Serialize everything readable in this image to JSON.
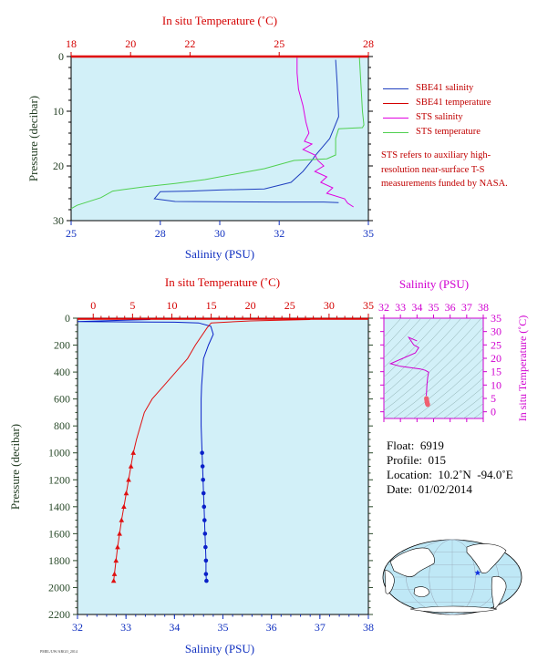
{
  "chart_data": [
    {
      "type": "line",
      "id": "top",
      "xlabel_bottom": "Salinity (PSU)",
      "xlabel_top": "In situ Temperature (˚C)",
      "ylabel": "Pressure (decibar)",
      "x_bottom_range": [
        25,
        35
      ],
      "x_bottom_ticks": [
        "25",
        "28",
        "30",
        "32",
        "35"
      ],
      "x_bottom_tick_values": [
        25,
        28,
        30,
        32,
        35
      ],
      "x_top_range": [
        18,
        28
      ],
      "x_top_ticks": [
        "18",
        "20",
        "22",
        "25",
        "28"
      ],
      "x_top_tick_values": [
        18,
        20,
        22,
        25,
        28
      ],
      "y_range": [
        0,
        30
      ],
      "y_ticks": [
        "0",
        "10",
        "20",
        "30"
      ],
      "y_tick_values": [
        0,
        10,
        20,
        30
      ],
      "series": [
        {
          "name": "SBE41 salinity",
          "axis": "salinity",
          "color": "#1f3fbf",
          "points": [
            [
              33.9,
              0.6
            ],
            [
              33.95,
              5
            ],
            [
              34.0,
              11
            ],
            [
              33.7,
              15
            ],
            [
              33.2,
              18.2
            ],
            [
              33.1,
              19
            ],
            [
              32.8,
              21
            ],
            [
              32.4,
              23
            ],
            [
              31.5,
              24.2
            ],
            [
              30.0,
              24.4
            ],
            [
              29.0,
              24.6
            ],
            [
              28.0,
              24.7
            ],
            [
              27.8,
              26.0
            ],
            [
              28.5,
              26.5
            ],
            [
              32.0,
              26.6
            ],
            [
              33.5,
              26.6
            ],
            [
              34.0,
              26.7
            ]
          ]
        },
        {
          "name": "SBE41 temperature",
          "axis": "temperature",
          "color": "#d40000",
          "points": [
            [
              27.9,
              0.6
            ],
            [
              27.9,
              0.6
            ]
          ]
        },
        {
          "name": "STS salinity",
          "axis": "salinity",
          "color": "#e000e0",
          "points": [
            [
              32.6,
              0.2
            ],
            [
              32.6,
              3
            ],
            [
              32.65,
              6
            ],
            [
              32.8,
              9
            ],
            [
              32.9,
              12
            ],
            [
              33.0,
              14
            ],
            [
              32.85,
              15.5
            ],
            [
              33.1,
              16
            ],
            [
              32.8,
              17
            ],
            [
              33.2,
              18
            ],
            [
              33.3,
              19
            ],
            [
              33.5,
              20
            ],
            [
              33.2,
              21
            ],
            [
              33.6,
              22
            ],
            [
              33.4,
              23
            ],
            [
              33.8,
              24
            ],
            [
              33.6,
              25
            ],
            [
              34.2,
              26
            ],
            [
              34.3,
              26.8
            ],
            [
              34.5,
              27.5
            ]
          ]
        },
        {
          "name": "STS temperature",
          "axis": "temperature",
          "color": "#50d050",
          "points": [
            [
              27.7,
              0.2
            ],
            [
              27.75,
              5
            ],
            [
              27.8,
              10
            ],
            [
              27.85,
              12.5
            ],
            [
              27.8,
              13
            ],
            [
              27.0,
              13.2
            ],
            [
              26.9,
              15
            ],
            [
              26.9,
              18
            ],
            [
              26.6,
              18.7
            ],
            [
              25.5,
              19
            ],
            [
              24.5,
              20.5
            ],
            [
              23.5,
              21.5
            ],
            [
              22.5,
              22.5
            ],
            [
              21.5,
              23.2
            ],
            [
              20.5,
              23.8
            ],
            [
              19.8,
              24.3
            ],
            [
              19.4,
              24.6
            ],
            [
              19.0,
              25.8
            ],
            [
              18.2,
              27.2
            ],
            [
              18.0,
              27.8
            ]
          ]
        }
      ],
      "legend": [
        "SBE41 salinity",
        "SBE41 temperature",
        "STS salinity",
        "STS temperature"
      ],
      "note": "STS refers to auxiliary high-resolution near-surface T-S measurements funded by NASA."
    },
    {
      "type": "line",
      "id": "main",
      "xlabel_bottom": "Salinity (PSU)",
      "xlabel_top": "In situ Temperature (˚C)",
      "ylabel": "Pressure (decibar)",
      "x_bottom_range": [
        32,
        38
      ],
      "x_bottom_ticks": [
        "32",
        "33",
        "34",
        "35",
        "36",
        "37",
        "38"
      ],
      "x_top_range": [
        -2,
        35
      ],
      "x_top_ticks": [
        "0",
        "5",
        "10",
        "15",
        "20",
        "25",
        "30",
        "35"
      ],
      "y_range": [
        0,
        2200
      ],
      "y_ticks": [
        "0",
        "200",
        "400",
        "600",
        "800",
        "1000",
        "1200",
        "1400",
        "1600",
        "1800",
        "2000",
        "2200"
      ],
      "series": [
        {
          "name": "Salinity",
          "axis": "salinity",
          "color": "#0a20c8",
          "points": [
            [
              33.5,
              10
            ],
            [
              32.0,
              25
            ],
            [
              33.0,
              28
            ],
            [
              34.0,
              30
            ],
            [
              34.5,
              35
            ],
            [
              34.75,
              60
            ],
            [
              34.8,
              120
            ],
            [
              34.7,
              200
            ],
            [
              34.6,
              300
            ],
            [
              34.58,
              400
            ],
            [
              34.56,
              500
            ],
            [
              34.55,
              600
            ],
            [
              34.55,
              700
            ],
            [
              34.55,
              800
            ],
            [
              34.56,
              900
            ],
            [
              34.57,
              1000
            ],
            [
              34.58,
              1100
            ],
            [
              34.59,
              1200
            ],
            [
              34.6,
              1300
            ],
            [
              34.61,
              1400
            ],
            [
              34.62,
              1500
            ],
            [
              34.63,
              1600
            ],
            [
              34.64,
              1700
            ],
            [
              34.65,
              1800
            ],
            [
              34.65,
              1900
            ],
            [
              34.66,
              1950
            ]
          ],
          "marked_from": 1000
        },
        {
          "name": "Temperature",
          "axis": "temperature",
          "color": "#e01010",
          "points": [
            [
              27.8,
              5
            ],
            [
              27.5,
              10
            ],
            [
              20,
              20
            ],
            [
              15,
              35
            ],
            [
              14.5,
              70
            ],
            [
              13,
              200
            ],
            [
              12,
              300
            ],
            [
              10.5,
              400
            ],
            [
              9,
              500
            ],
            [
              7.5,
              600
            ],
            [
              6.5,
              700
            ],
            [
              6,
              800
            ],
            [
              5.5,
              900
            ],
            [
              5.1,
              1000
            ],
            [
              4.8,
              1100
            ],
            [
              4.5,
              1200
            ],
            [
              4.2,
              1300
            ],
            [
              3.9,
              1400
            ],
            [
              3.6,
              1500
            ],
            [
              3.35,
              1600
            ],
            [
              3.1,
              1700
            ],
            [
              2.9,
              1800
            ],
            [
              2.7,
              1900
            ],
            [
              2.6,
              1950
            ]
          ],
          "marked_from": 1000
        }
      ]
    },
    {
      "type": "scatter",
      "id": "ts",
      "xlabel_top": "Salinity (PSU)",
      "ylabel": "In situ Temperature (˚C)",
      "x_range": [
        32,
        38
      ],
      "x_ticks": [
        "32",
        "33",
        "34",
        "35",
        "36",
        "37",
        "38"
      ],
      "y_range": [
        -2.5,
        35
      ],
      "y_ticks": [
        "0",
        "5",
        "10",
        "15",
        "20",
        "25",
        "30",
        "35"
      ],
      "line": [
        [
          34.0,
          26.5
        ],
        [
          33.5,
          27.8
        ],
        [
          33.8,
          25
        ],
        [
          34.1,
          24
        ],
        [
          33.9,
          22
        ],
        [
          32.4,
          18
        ],
        [
          33.0,
          17
        ],
        [
          34.2,
          16
        ],
        [
          34.5,
          15.5
        ],
        [
          34.7,
          14.8
        ],
        [
          34.65,
          13
        ],
        [
          34.6,
          10
        ],
        [
          34.58,
          8
        ],
        [
          34.56,
          6
        ]
      ],
      "markers": [
        [
          34.57,
          5.0
        ],
        [
          34.58,
          4.6
        ],
        [
          34.59,
          4.2
        ],
        [
          34.6,
          3.8
        ],
        [
          34.61,
          3.5
        ],
        [
          34.62,
          3.2
        ],
        [
          34.63,
          3.0
        ],
        [
          34.64,
          2.8
        ],
        [
          34.65,
          2.7
        ]
      ]
    }
  ],
  "info": {
    "float": "Float:  6919",
    "profile": "Profile:  015",
    "location": "Location:  10.2˚N  -94.0˚E",
    "date": "Date:  01/02/2014"
  },
  "map": {
    "marker_lon": -94.0,
    "marker_lat": 10.2
  },
  "colors": {
    "plot_bg": "#d2f0f8",
    "temp_axis": "#e00000",
    "salinity_axis": "#1030c0",
    "pressure_axis": "#2a4a2a",
    "ts_axis": "#d000d0"
  }
}
